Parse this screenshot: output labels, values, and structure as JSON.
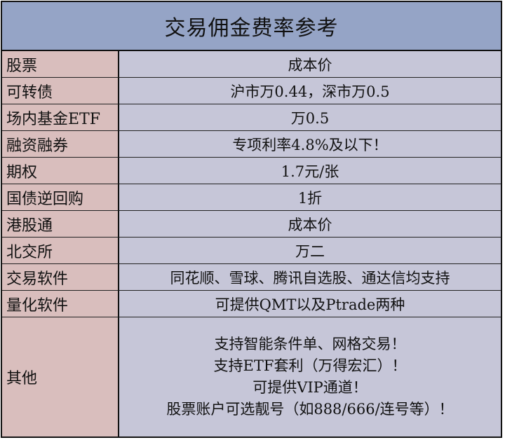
{
  "title": "交易佣金费率参考",
  "rows": [
    {
      "label": "股票",
      "value": "成本价"
    },
    {
      "label": "可转债",
      "value": "沪市万0.44，深市万0.5"
    },
    {
      "label": "场内基金ETF",
      "value": "万0.5"
    },
    {
      "label": "融资融券",
      "value": "专项利率4.8%及以下！"
    },
    {
      "label": "期权",
      "value": "1.7元/张"
    },
    {
      "label": "国债逆回购",
      "value": "1折"
    },
    {
      "label": "港股通",
      "value": "成本价"
    },
    {
      "label": "北交所",
      "value": "万二"
    },
    {
      "label": "交易软件",
      "value": "同花顺、雪球、腾讯自选股、通达信均支持"
    },
    {
      "label": "量化软件",
      "value": "可提供QMT以及Ptrade两种"
    }
  ],
  "other": {
    "label": "其他",
    "lines": [
      "支持智能条件单、网格交易！",
      "支持ETF套利（万得宏汇）！",
      "可提供VIP通道！",
      "股票账户可选靓号（如888/666/连号等）！"
    ]
  },
  "colors": {
    "title_bg": "#95A4C6",
    "label_bg": "#D9BEBD",
    "value_bg": "#C6C6D8"
  }
}
